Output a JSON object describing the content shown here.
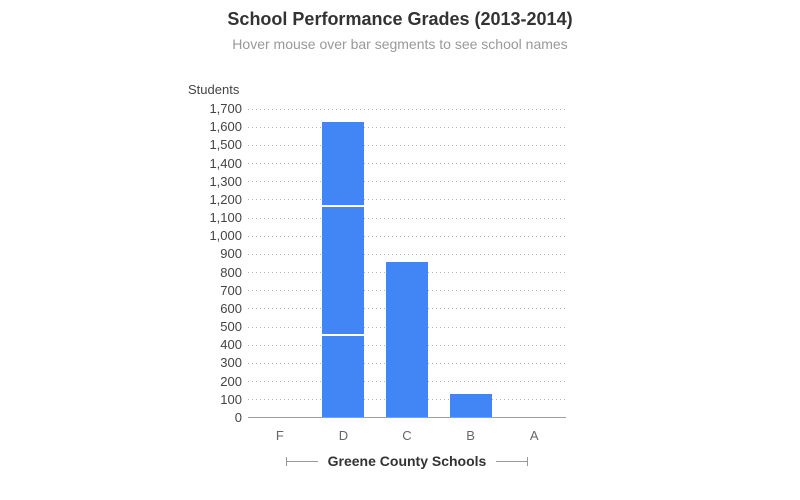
{
  "header": {
    "title": "School Performance Grades (2013-2014)",
    "subtitle": "Hover mouse over bar segments to see school names"
  },
  "chart_data": {
    "type": "bar",
    "stacked": true,
    "title": "School Performance Grades (2013-2014)",
    "subtitle": "Hover mouse over bar segments to see school names",
    "xlabel": "Greene County Schools",
    "ylabel": "Students",
    "categories": [
      "F",
      "D",
      "C",
      "B",
      "A"
    ],
    "segments": {
      "F": [],
      "D": [
        450,
        710,
        470
      ],
      "C": [
        860
      ],
      "B": [
        130
      ],
      "A": []
    },
    "totals": {
      "F": 0,
      "D": 1630,
      "C": 860,
      "B": 130,
      "A": 0
    },
    "segments_note": "stacked segments represent individual schools; school names only visible on hover (tooltip), not in the static image",
    "ylim": [
      0,
      1700
    ],
    "ytick_step": 100,
    "yticks": [
      "0",
      "100",
      "200",
      "300",
      "400",
      "500",
      "600",
      "700",
      "800",
      "900",
      "1,000",
      "1,100",
      "1,200",
      "1,300",
      "1,400",
      "1,500",
      "1,600",
      "1,700"
    ],
    "grid": "dotted horizontal gridlines at every 100",
    "legend": "none"
  },
  "colors": {
    "bar": "#4285f4",
    "segment_divider": "#ffffff",
    "gridline": "#b7b7b7",
    "baseline": "#9e9e9e",
    "title": "#333333",
    "subtitle": "#999999",
    "tick_label": "#444444",
    "category_label": "#666666",
    "caption_text": "#333333",
    "bracket": "#999999"
  }
}
